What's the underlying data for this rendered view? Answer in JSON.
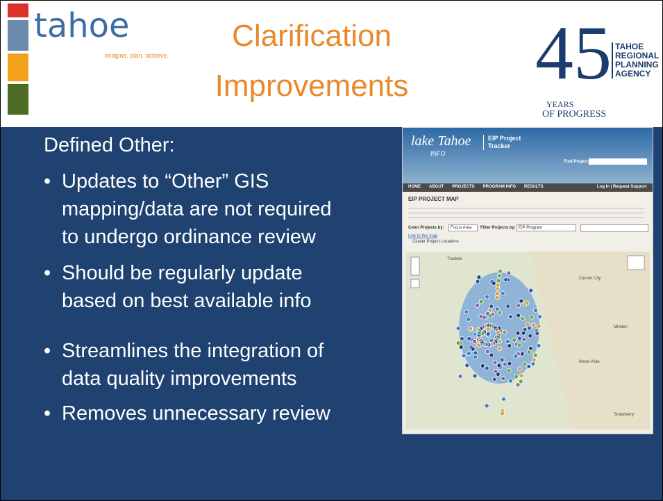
{
  "header": {
    "brand": "tahoe",
    "tagline": "imagine. plan. achieve.",
    "title": [
      "Clarification",
      "Improvements"
    ],
    "logo": {
      "number": "45",
      "years": "YEARS",
      "progress": "OF PROGRESS",
      "agency": [
        "TAHOE",
        "REGIONAL",
        "PLANNING",
        "AGENCY"
      ]
    }
  },
  "body": {
    "heading": "Defined Other:",
    "bullets": [
      [
        "Updates to “Other” GIS",
        "mapping/data are not required",
        "to undergo ordinance review"
      ],
      [
        "Should be regularly update",
        "based on best available  info"
      ],
      [
        "Streamlines the integration of",
        "data quality improvements"
      ],
      [
        "Removes unnecessary review"
      ]
    ]
  },
  "screenshot": {
    "site": "lake Tahoe",
    "site_sub": "INFO",
    "app": [
      "EIP Project",
      "Tracker"
    ],
    "find": "Find Project:",
    "nav": [
      "HOME",
      "ABOUT",
      "PROJECTS",
      "PROGRAM INFO",
      "RESULTS"
    ],
    "login": "Log In | Request Support",
    "page_title": "EIP PROJECT MAP",
    "color_by": "Color Projects by:",
    "focus": "Focus Area",
    "filter_by": "Filter Projects by:",
    "program": "EIP Program",
    "link": "Link to this map",
    "cluster": "Cluster Project Locations",
    "places": [
      "Truckee",
      "Carson City",
      "Minden",
      "Mesa Vista",
      "Strawberry"
    ]
  }
}
